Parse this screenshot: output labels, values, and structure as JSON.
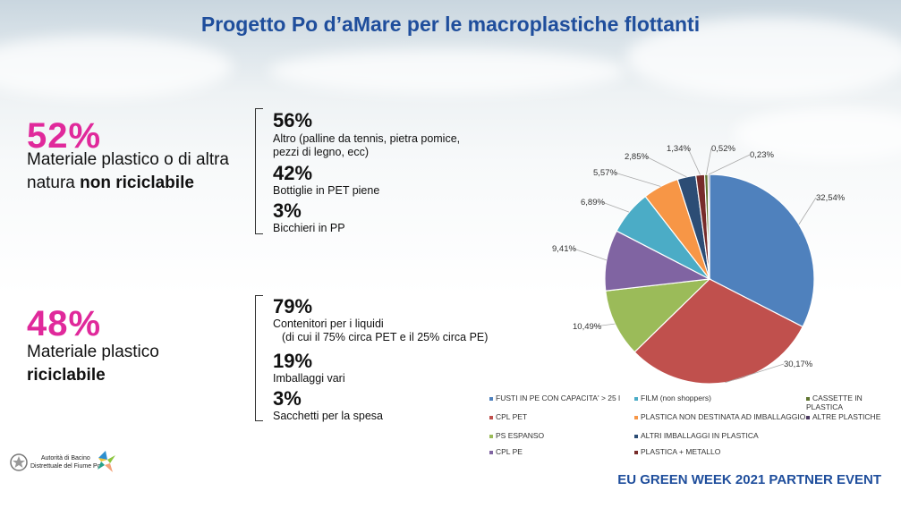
{
  "title": "Progetto Po d’aMare per le macroplastiche flottanti",
  "left": {
    "group1": {
      "big": "52%",
      "line1": "Materiale plastico o di altra",
      "line2a": "natura ",
      "line2b": "non riciclabile",
      "items": [
        {
          "pct": "56%",
          "text": [
            "Altro (palline da tennis, pietra pomice,",
            "pezzi di legno, ecc)"
          ]
        },
        {
          "pct": "42%",
          "text": [
            "Bottiglie in PET piene"
          ]
        },
        {
          "pct": "3%",
          "text": [
            "Bicchieri in PP"
          ]
        }
      ]
    },
    "group2": {
      "big": "48%",
      "line1": "Materiale plastico",
      "line2b": "riciclabile",
      "items": [
        {
          "pct": "79%",
          "text": [
            "Contenitori per i liquidi",
            "(di cui il 75% circa PET e il 25% circa PE)"
          ]
        },
        {
          "pct": "19%",
          "text": [
            "Imballaggi vari"
          ]
        },
        {
          "pct": "3%",
          "text": [
            "Sacchetti per la spesa"
          ]
        }
      ]
    }
  },
  "chart_data": {
    "type": "pie",
    "labels": [
      "FUSTI IN PE CON CAPACITA' > 25 l",
      "CPL PET",
      "PS ESPANSO",
      "CPL PE",
      "FILM  (non shoppers)",
      "PLASTICA NON DESTINATA AD IMBALLAGGIO",
      "ALTRI IMBALLAGGI IN PLASTICA",
      "PLASTICA + METALLO",
      "CASSETTE IN PLASTICA",
      "ALTRE PLASTICHE"
    ],
    "values": [
      32.54,
      30.17,
      10.49,
      9.41,
      6.89,
      5.57,
      2.85,
      1.34,
      0.52,
      0.23
    ],
    "value_labels": [
      "32,54%",
      "30,17%",
      "10,49%",
      "9,41%",
      "6,89%",
      "5,57%",
      "2,85%",
      "1,34%",
      "0,52%",
      "0,23%"
    ],
    "colors": [
      "#4f81bd",
      "#c0504d",
      "#9bbb59",
      "#8064a2",
      "#4bacc6",
      "#f79646",
      "#2c4d75",
      "#772c2a",
      "#5f7530",
      "#4d3b62"
    ],
    "start": "top",
    "direction": "clockwise",
    "legend_placement": "bottom"
  },
  "logo": {
    "text1": "Autorità di Bacino",
    "text2": "Distrettuale del Fiume Po"
  },
  "footer": "EU GREEN WEEK 2021 PARTNER EVENT"
}
